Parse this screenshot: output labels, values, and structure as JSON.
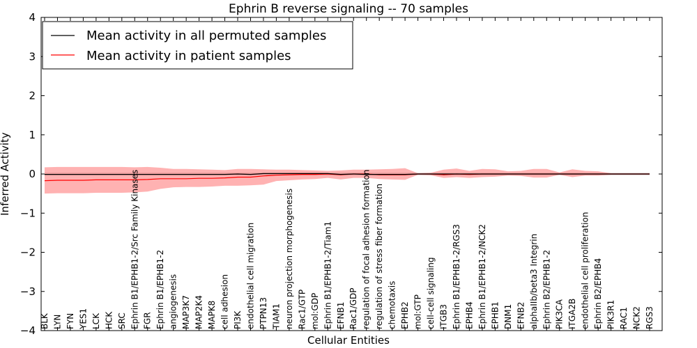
{
  "chart_data": {
    "type": "line",
    "title": "Ephrin B reverse signaling -- 70 samples",
    "xlabel": "Cellular Entities",
    "ylabel": "Inferred Activity",
    "ylim": [
      -4,
      4
    ],
    "yticks": [
      -4,
      -3,
      -2,
      -1,
      0,
      1,
      2,
      3,
      4
    ],
    "ytick_labels": [
      "−4",
      "−3",
      "−2",
      "−1",
      "0",
      "1",
      "2",
      "3",
      "4"
    ],
    "grid": false,
    "legend_position": "top-left",
    "categories": [
      "BLK",
      "LYN",
      "FYN",
      "YES1",
      "LCK",
      "HCK",
      "SRC",
      "Ephrin B1/EPHB1-2/Src Family Kinases",
      "FGR",
      "Ephrin B1/EPHB1-2",
      "angiogenesis",
      "MAP3K7",
      "MAP2K4",
      "MAPK8",
      "cell adhesion",
      "PI3K",
      "endothelial cell migration",
      "PTPN13",
      "TIAM1",
      "neuron projection morphogenesis",
      "Rac1/GTP",
      "mol:GDP",
      "Ephrin B1/EPHB1-2/Tiam1",
      "EFNB1",
      "Rac1/GDP",
      "regulation of focal adhesion formation",
      "regulation of stress fiber formation",
      "chemotaxis",
      "EPHB2",
      "mol:GTP",
      "cell-cell signaling",
      "ITGB3",
      "Ephrin B1/EPHB1-2/RGS3",
      "EPHB4",
      "Ephrin B1/EPHB1-2/NCK2",
      "EPHB1",
      "DNM1",
      "EFNB2",
      "alphaIIb/beta3 Integrin",
      "Ephrin B2/EPHB1-2",
      "PIK3CA",
      "ITGA2B",
      "endothelial cell proliferation",
      "Ephrin B2/EPHB4",
      "PIK3R1",
      "RAC1",
      "NCK2",
      "RGS3"
    ],
    "series": [
      {
        "name": "Mean activity in all permuted samples",
        "color": "#000000",
        "values": [
          -0.01,
          -0.01,
          -0.01,
          -0.01,
          -0.01,
          -0.01,
          -0.01,
          -0.01,
          -0.01,
          -0.01,
          -0.01,
          -0.01,
          -0.01,
          -0.01,
          -0.01,
          0.0,
          -0.01,
          0.01,
          0.01,
          0.01,
          0.01,
          0.01,
          0.01,
          -0.01,
          0.0,
          -0.01,
          -0.01,
          -0.01,
          -0.01,
          0.0,
          0.0,
          0.0,
          0.0,
          0.0,
          0.0,
          0.0,
          0.0,
          0.0,
          0.0,
          0.0,
          0.0,
          0.0,
          0.0,
          0.0,
          0.0,
          0.0,
          0.0,
          0.0
        ],
        "lower": [
          -0.03,
          -0.03,
          -0.03,
          -0.03,
          -0.03,
          -0.03,
          -0.03,
          -0.03,
          -0.03,
          -0.03,
          -0.03,
          -0.03,
          -0.03,
          -0.03,
          -0.03,
          -0.03,
          -0.03,
          -0.03,
          -0.03,
          -0.03,
          -0.03,
          -0.03,
          -0.03,
          -0.03,
          -0.03,
          -0.03,
          -0.03,
          -0.03,
          -0.03,
          -0.03,
          -0.03,
          -0.03,
          -0.03,
          -0.03,
          -0.03,
          -0.03,
          -0.03,
          -0.03,
          -0.03,
          -0.03,
          -0.03,
          -0.03,
          -0.03,
          -0.03,
          -0.03,
          -0.03,
          -0.03,
          -0.03
        ],
        "upper": [
          0.03,
          0.03,
          0.03,
          0.03,
          0.03,
          0.03,
          0.03,
          0.03,
          0.03,
          0.03,
          0.03,
          0.03,
          0.03,
          0.03,
          0.03,
          0.03,
          0.03,
          0.03,
          0.03,
          0.03,
          0.03,
          0.03,
          0.03,
          0.03,
          0.03,
          0.03,
          0.03,
          0.03,
          0.03,
          0.03,
          0.03,
          0.03,
          0.03,
          0.03,
          0.03,
          0.03,
          0.03,
          0.03,
          0.03,
          0.03,
          0.03,
          0.03,
          0.03,
          0.03,
          0.03,
          0.03,
          0.03,
          0.03
        ]
      },
      {
        "name": "Mean activity in patient samples",
        "color": "#ff0000",
        "values": [
          -0.17,
          -0.16,
          -0.16,
          -0.16,
          -0.15,
          -0.15,
          -0.15,
          -0.15,
          -0.14,
          -0.12,
          -0.12,
          -0.12,
          -0.11,
          -0.11,
          -0.1,
          -0.08,
          -0.08,
          -0.05,
          -0.03,
          -0.02,
          -0.01,
          -0.01,
          0.0,
          -0.02,
          0.0,
          0.0,
          -0.02,
          -0.02,
          -0.02,
          0.0,
          0.0,
          -0.02,
          0.0,
          -0.01,
          0.0,
          0.0,
          0.0,
          0.0,
          0.0,
          0.0,
          0.0,
          0.0,
          0.0,
          0.0,
          0.0,
          0.0,
          0.0,
          0.0
        ],
        "lower": [
          -0.5,
          -0.49,
          -0.49,
          -0.49,
          -0.48,
          -0.48,
          -0.48,
          -0.47,
          -0.45,
          -0.38,
          -0.34,
          -0.33,
          -0.33,
          -0.32,
          -0.3,
          -0.3,
          -0.29,
          -0.27,
          -0.18,
          -0.16,
          -0.14,
          -0.13,
          -0.1,
          -0.14,
          -0.1,
          -0.1,
          -0.13,
          -0.14,
          -0.15,
          -0.02,
          -0.03,
          -0.1,
          -0.08,
          -0.1,
          -0.08,
          -0.07,
          -0.04,
          -0.05,
          -0.09,
          -0.09,
          -0.02,
          -0.08,
          -0.04,
          -0.04,
          -0.02,
          -0.02,
          -0.02,
          -0.02
        ],
        "upper": [
          0.17,
          0.18,
          0.18,
          0.18,
          0.18,
          0.18,
          0.18,
          0.17,
          0.18,
          0.16,
          0.13,
          0.13,
          0.12,
          0.11,
          0.1,
          0.13,
          0.13,
          0.12,
          0.11,
          0.11,
          0.1,
          0.09,
          0.08,
          0.09,
          0.11,
          0.11,
          0.12,
          0.13,
          0.15,
          0.02,
          0.03,
          0.11,
          0.14,
          0.08,
          0.13,
          0.12,
          0.07,
          0.08,
          0.13,
          0.13,
          0.04,
          0.12,
          0.08,
          0.07,
          0.02,
          0.02,
          0.02,
          0.02
        ]
      }
    ]
  }
}
